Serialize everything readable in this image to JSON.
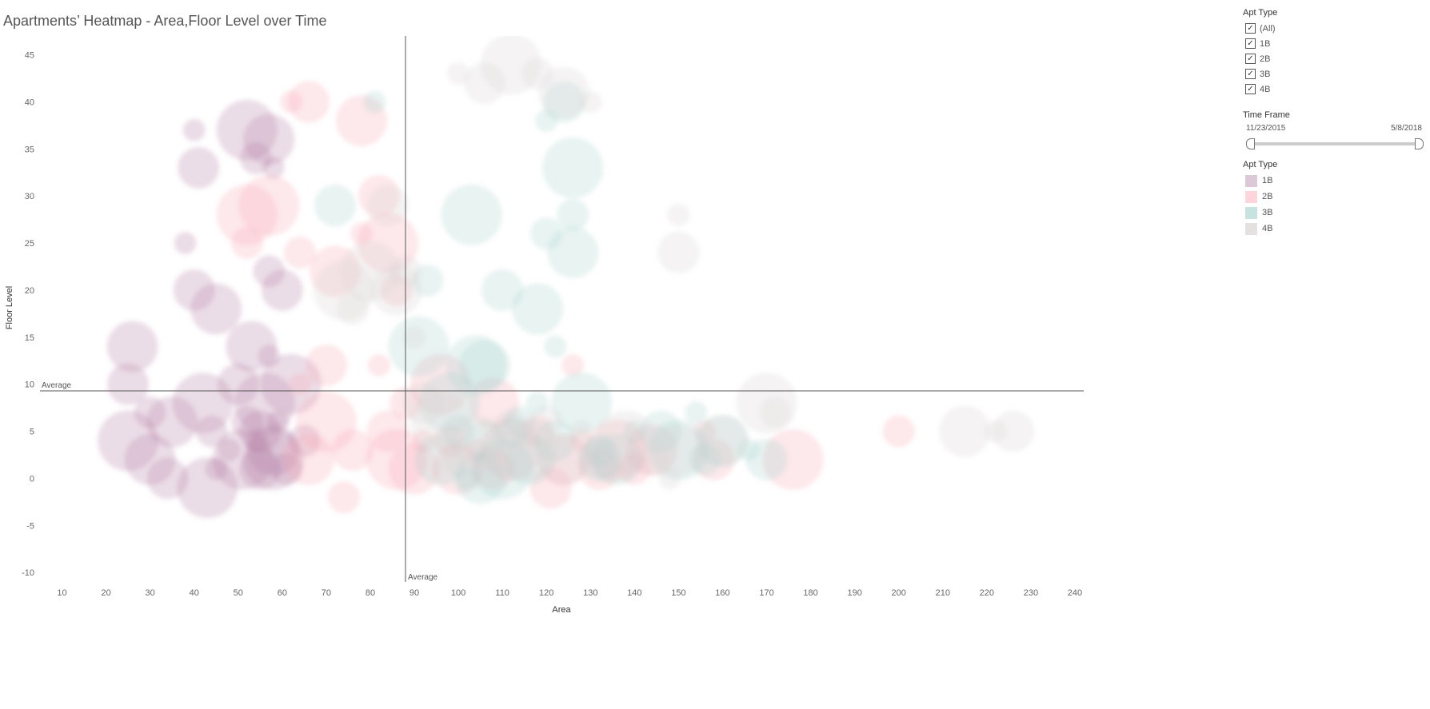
{
  "title": "Apartments’ Heatmap - Area,Floor Level over Time",
  "filter": {
    "title": "Apt Type",
    "items": [
      {
        "label": "(All)",
        "checked": true
      },
      {
        "label": "1B",
        "checked": true
      },
      {
        "label": "2B",
        "checked": true
      },
      {
        "label": "3B",
        "checked": true
      },
      {
        "label": "4B",
        "checked": true
      }
    ]
  },
  "timeframe": {
    "title": "Time Frame",
    "start": "11/23/2015",
    "end": "5/8/2018"
  },
  "legend": {
    "title": "Apt Type",
    "items": [
      {
        "label": "1B",
        "color": "#dcc9d8"
      },
      {
        "label": "2B",
        "color": "#fdd5da"
      },
      {
        "label": "3B",
        "color": "#c6e3df"
      },
      {
        "label": "4B",
        "color": "#e5e1e1"
      }
    ]
  },
  "chart_data": {
    "type": "scatter",
    "title": "Apartments’ Heatmap - Area,Floor Level over Time",
    "xlabel": "Area",
    "ylabel": "Floor Level",
    "xlim": [
      5,
      242
    ],
    "ylim": [
      -11,
      47
    ],
    "xticks": [
      10,
      20,
      30,
      40,
      50,
      60,
      70,
      80,
      90,
      100,
      110,
      120,
      130,
      140,
      150,
      160,
      170,
      180,
      190,
      200,
      210,
      220,
      230,
      240
    ],
    "yticks": [
      -10,
      -5,
      0,
      5,
      10,
      15,
      20,
      25,
      30,
      35,
      40,
      45
    ],
    "reference_lines": {
      "x_average": {
        "label": "Average",
        "value": 88
      },
      "y_average": {
        "label": "Average",
        "value": 9.3
      }
    },
    "series": [
      {
        "name": "1B",
        "color": "#b07ca3",
        "points": [
          [
            40,
            37
          ],
          [
            41,
            33
          ],
          [
            52,
            37
          ],
          [
            54,
            34
          ],
          [
            57,
            36
          ],
          [
            58,
            33
          ],
          [
            25,
            10
          ],
          [
            25,
            4
          ],
          [
            30,
            7
          ],
          [
            35,
            6
          ],
          [
            38,
            25
          ],
          [
            40,
            20
          ],
          [
            42,
            8
          ],
          [
            44,
            5
          ],
          [
            45,
            18
          ],
          [
            48,
            3
          ],
          [
            50,
            10
          ],
          [
            51,
            2
          ],
          [
            52,
            6
          ],
          [
            53,
            14
          ],
          [
            54,
            4
          ],
          [
            55,
            1
          ],
          [
            56,
            8
          ],
          [
            57,
            22
          ],
          [
            58,
            3
          ],
          [
            59,
            6
          ],
          [
            60,
            20
          ],
          [
            62,
            10
          ],
          [
            65,
            4
          ],
          [
            30,
            2
          ],
          [
            45,
            1
          ],
          [
            55,
            5
          ],
          [
            58,
            2
          ],
          [
            61,
            1
          ],
          [
            26,
            14
          ],
          [
            57,
            13
          ],
          [
            34,
            0
          ],
          [
            43,
            -1
          ]
        ]
      },
      {
        "name": "2B",
        "color": "#f6a7b3",
        "points": [
          [
            62,
            40
          ],
          [
            66,
            40
          ],
          [
            57,
            29
          ],
          [
            64,
            24
          ],
          [
            72,
            22
          ],
          [
            78,
            26
          ],
          [
            82,
            30
          ],
          [
            84,
            25
          ],
          [
            86,
            20
          ],
          [
            78,
            38
          ],
          [
            82,
            12
          ],
          [
            84,
            5
          ],
          [
            86,
            2
          ],
          [
            88,
            8
          ],
          [
            90,
            1
          ],
          [
            92,
            4
          ],
          [
            76,
            3
          ],
          [
            70,
            6
          ],
          [
            74,
            -2
          ],
          [
            66,
            2
          ],
          [
            64,
            10
          ],
          [
            70,
            12
          ],
          [
            96,
            10
          ],
          [
            98,
            4
          ],
          [
            100,
            1
          ],
          [
            104,
            3
          ],
          [
            108,
            1
          ],
          [
            112,
            3
          ],
          [
            118,
            5
          ],
          [
            124,
            2
          ],
          [
            128,
            4
          ],
          [
            132,
            1
          ],
          [
            136,
            3
          ],
          [
            140,
            1
          ],
          [
            144,
            3
          ],
          [
            156,
            5
          ],
          [
            158,
            2
          ],
          [
            176,
            2
          ],
          [
            200,
            5
          ],
          [
            108,
            8
          ],
          [
            126,
            12
          ],
          [
            121,
            -1
          ],
          [
            52,
            28
          ],
          [
            52,
            25
          ]
        ]
      },
      {
        "name": "3B",
        "color": "#a7d2cc",
        "points": [
          [
            81,
            40
          ],
          [
            72,
            29
          ],
          [
            103,
            28
          ],
          [
            126,
            28
          ],
          [
            126,
            24
          ],
          [
            120,
            38
          ],
          [
            124,
            40
          ],
          [
            126,
            33
          ],
          [
            120,
            26
          ],
          [
            118,
            18
          ],
          [
            122,
            14
          ],
          [
            110,
            20
          ],
          [
            104,
            12
          ],
          [
            100,
            5
          ],
          [
            96,
            2
          ],
          [
            102,
            0
          ],
          [
            106,
            4
          ],
          [
            110,
            1
          ],
          [
            112,
            5
          ],
          [
            116,
            2
          ],
          [
            118,
            8
          ],
          [
            122,
            4
          ],
          [
            128,
            8
          ],
          [
            132,
            3
          ],
          [
            136,
            2
          ],
          [
            140,
            5
          ],
          [
            146,
            5
          ],
          [
            150,
            3
          ],
          [
            156,
            2
          ],
          [
            160,
            4
          ],
          [
            166,
            3
          ],
          [
            170,
            2
          ],
          [
            91,
            14
          ],
          [
            93,
            21
          ],
          [
            106,
            12
          ],
          [
            154,
            7
          ],
          [
            132,
            2
          ],
          [
            98,
            8
          ],
          [
            114,
            6
          ],
          [
            105,
            0
          ]
        ]
      },
      {
        "name": "4B",
        "color": "#d7d0d0",
        "points": [
          [
            100,
            43
          ],
          [
            106,
            42
          ],
          [
            112,
            44
          ],
          [
            118,
            43
          ],
          [
            124,
            41
          ],
          [
            130,
            40
          ],
          [
            84,
            29
          ],
          [
            80,
            22
          ],
          [
            76,
            18
          ],
          [
            86,
            20
          ],
          [
            90,
            15
          ],
          [
            92,
            8
          ],
          [
            96,
            6
          ],
          [
            100,
            2
          ],
          [
            104,
            4
          ],
          [
            108,
            2
          ],
          [
            112,
            5
          ],
          [
            116,
            3
          ],
          [
            120,
            6
          ],
          [
            124,
            2
          ],
          [
            128,
            5
          ],
          [
            132,
            2
          ],
          [
            138,
            4
          ],
          [
            144,
            2
          ],
          [
            150,
            3
          ],
          [
            150,
            28
          ],
          [
            150,
            24
          ],
          [
            170,
            8
          ],
          [
            172,
            7
          ],
          [
            215,
            5
          ],
          [
            222,
            5
          ],
          [
            226,
            5
          ],
          [
            74,
            20
          ],
          [
            88,
            22
          ],
          [
            160,
            4
          ],
          [
            148,
            0
          ]
        ]
      }
    ]
  }
}
